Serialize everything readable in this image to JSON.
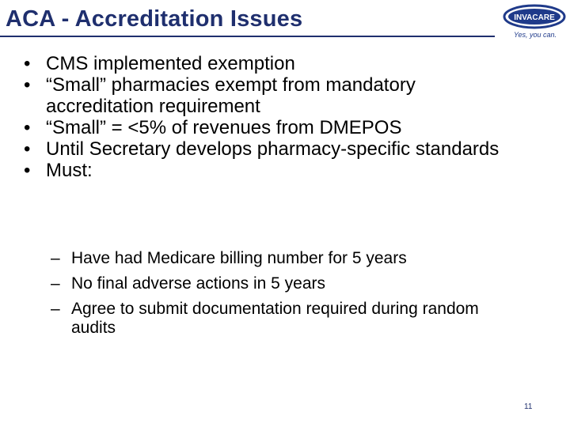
{
  "slide": {
    "title": "ACA - Accreditation Issues",
    "page_number": "11",
    "logo": {
      "name": "INVACARE",
      "tagline": "Yes, you can."
    },
    "colors": {
      "title": "#1f2f6e",
      "logo_blue": "#1f3a8a"
    },
    "bullets": [
      "CMS implemented exemption",
      "“Small” pharmacies exempt from mandatory accreditation requirement",
      "“Small” = <5% of revenues from DMEPOS",
      "Until Secretary develops pharmacy-specific standards",
      "Must:"
    ],
    "bullet_marker": "•",
    "sub_marker": "–",
    "sub_bullets": [
      "Have had Medicare billing number for 5 years",
      "No final adverse actions in 5 years",
      "Agree to submit documentation required during random audits"
    ]
  }
}
